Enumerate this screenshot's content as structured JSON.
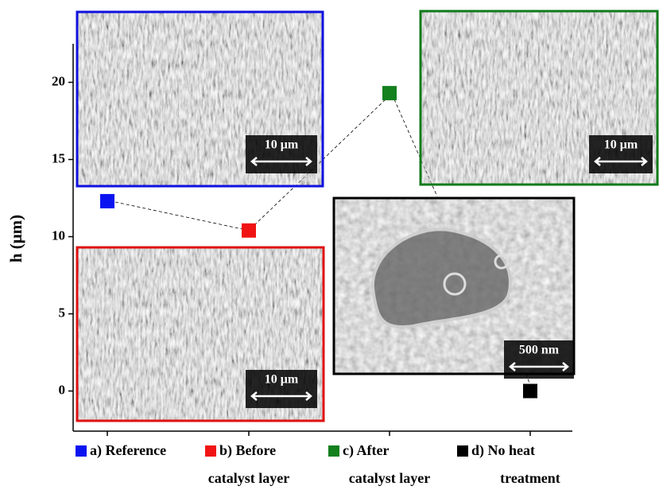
{
  "chart_data": {
    "type": "scatter",
    "y_label": "h (μm)",
    "categories": [
      [
        "a) Reference"
      ],
      [
        "b) Before",
        "catalyst layer"
      ],
      [
        "c) After",
        "catalyst layer"
      ],
      [
        "d) No heat",
        "treatment"
      ]
    ],
    "values": [
      12.3,
      10.4,
      19.3,
      0
    ],
    "colors": [
      "#0a14f0",
      "#f01414",
      "#14801e",
      "#000000"
    ],
    "ylim": [
      -2.6,
      22.5
    ],
    "yticks": [
      0,
      5,
      10,
      15,
      20
    ],
    "image_labels": [
      "10 μm",
      "10 μm",
      "10 μm",
      "500 nm"
    ]
  }
}
